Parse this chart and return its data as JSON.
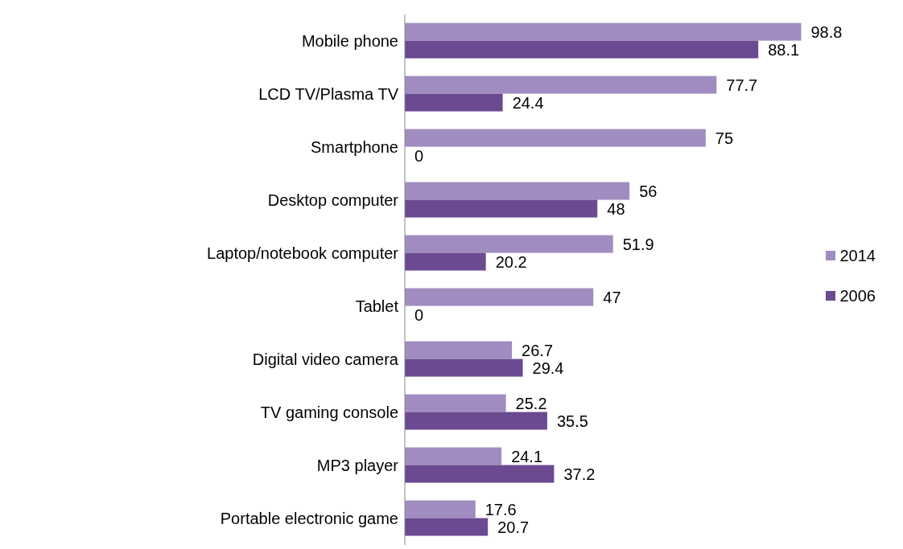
{
  "chart_data": {
    "type": "bar",
    "orientation": "horizontal",
    "categories": [
      "Mobile phone",
      "LCD TV/Plasma TV",
      "Smartphone",
      "Desktop computer",
      "Laptop/notebook computer",
      "Tablet",
      "Digital video camera",
      "TV gaming console",
      "MP3 player",
      "Portable electronic game"
    ],
    "series": [
      {
        "name": "2014",
        "color": "#a08cc0",
        "values": [
          98.8,
          77.7,
          75,
          56,
          51.9,
          47,
          26.7,
          25.2,
          24.1,
          17.6
        ]
      },
      {
        "name": "2006",
        "color": "#6b4a91",
        "values": [
          88.1,
          24.4,
          0,
          48,
          20.2,
          0,
          29.4,
          35.5,
          37.2,
          20.7
        ]
      }
    ],
    "data_labels": true,
    "legend": "right",
    "grid": false
  }
}
